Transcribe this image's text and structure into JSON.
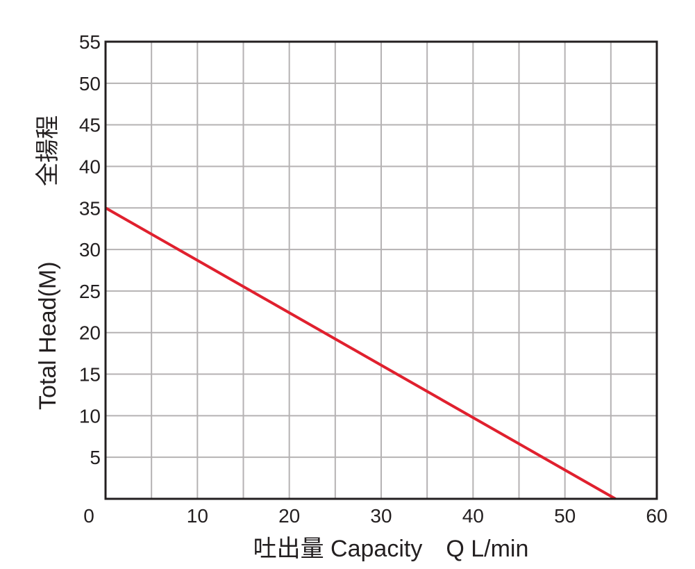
{
  "chart_data": {
    "type": "line",
    "xlabel": "吐出量 Capacity　Q L/min",
    "ylabel": "Total Head(M)",
    "ylabel_cjk": "全揚程",
    "xlim": [
      0,
      60
    ],
    "ylim": [
      0,
      55
    ],
    "x_ticks": [
      "0",
      "10",
      "20",
      "30",
      "40",
      "50",
      "60"
    ],
    "y_ticks": [
      "5",
      "10",
      "15",
      "20",
      "25",
      "30",
      "35",
      "40",
      "45",
      "50",
      "55"
    ],
    "grid": true,
    "series": [
      {
        "color": "#e0202e",
        "x": [
          0,
          55.5
        ],
        "y": [
          35,
          0
        ]
      }
    ],
    "colors": {
      "grid": "#b5b2b3",
      "frame": "#231f20",
      "line": "#e0202e"
    }
  }
}
